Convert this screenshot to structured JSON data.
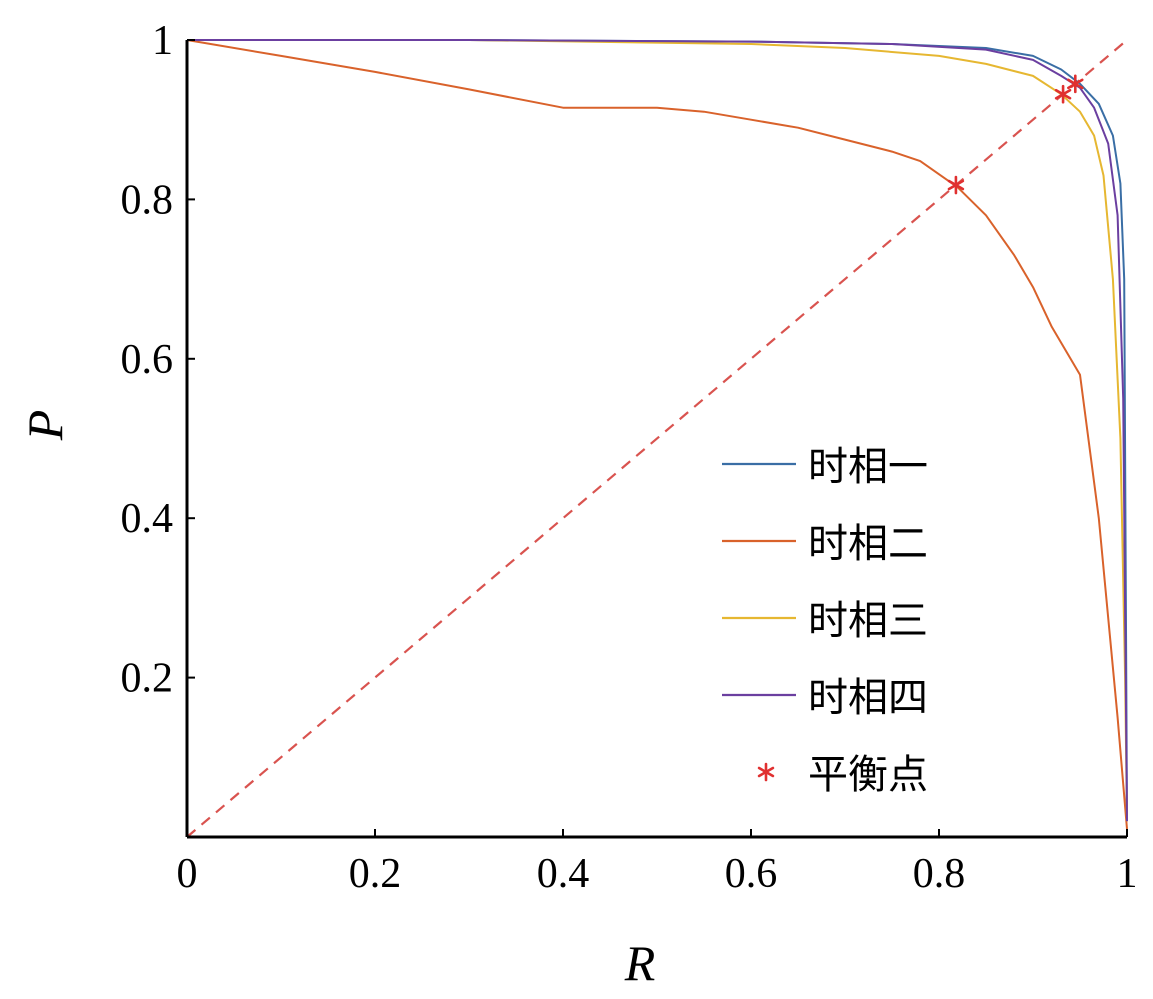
{
  "chart_data": {
    "type": "line",
    "xlabel": "R",
    "ylabel": "P",
    "xlim": [
      0,
      1
    ],
    "ylim": [
      0,
      1
    ],
    "x_ticks": [
      "0",
      "0.2",
      "0.4",
      "0.6",
      "0.8",
      "1"
    ],
    "y_ticks": [
      "0.2",
      "0.4",
      "0.6",
      "0.8",
      "1"
    ],
    "grid": false,
    "legend_position": "bottom-right",
    "series": [
      {
        "name": "时相一",
        "color": "#3a6ea5",
        "x": [
          0,
          0.3,
          0.6,
          0.75,
          0.85,
          0.9,
          0.93,
          0.95,
          0.97,
          0.985,
          0.993,
          0.997,
          1.0
        ],
        "y": [
          1.0,
          1.0,
          0.998,
          0.995,
          0.99,
          0.98,
          0.963,
          0.945,
          0.92,
          0.88,
          0.82,
          0.7,
          0.02
        ]
      },
      {
        "name": "时相二",
        "color": "#d9622b",
        "x": [
          0,
          0.1,
          0.2,
          0.3,
          0.4,
          0.5,
          0.55,
          0.6,
          0.65,
          0.7,
          0.75,
          0.78,
          0.82,
          0.85,
          0.88,
          0.9,
          0.92,
          0.95,
          0.97,
          0.99,
          1.0
        ],
        "y": [
          1.0,
          0.98,
          0.96,
          0.938,
          0.915,
          0.915,
          0.91,
          0.9,
          0.89,
          0.875,
          0.86,
          0.848,
          0.815,
          0.78,
          0.73,
          0.69,
          0.64,
          0.58,
          0.4,
          0.15,
          0.01
        ]
      },
      {
        "name": "时相三",
        "color": "#e6b731",
        "x": [
          0,
          0.3,
          0.6,
          0.7,
          0.8,
          0.85,
          0.9,
          0.93,
          0.95,
          0.965,
          0.975,
          0.985,
          0.993,
          0.998,
          1.0
        ],
        "y": [
          1.0,
          1.0,
          0.995,
          0.99,
          0.98,
          0.97,
          0.955,
          0.932,
          0.91,
          0.88,
          0.83,
          0.7,
          0.5,
          0.2,
          0.02
        ]
      },
      {
        "name": "时相四",
        "color": "#6b3fa0",
        "x": [
          0,
          0.3,
          0.6,
          0.75,
          0.85,
          0.9,
          0.93,
          0.95,
          0.965,
          0.98,
          0.99,
          0.996,
          1.0
        ],
        "y": [
          1.0,
          1.0,
          0.998,
          0.995,
          0.988,
          0.975,
          0.955,
          0.94,
          0.915,
          0.87,
          0.78,
          0.55,
          0.02
        ]
      }
    ],
    "balance_points": {
      "name": "平衡点",
      "color": "#e03030",
      "points": [
        [
          0.818,
          0.818
        ],
        [
          0.932,
          0.932
        ],
        [
          0.945,
          0.945
        ]
      ]
    },
    "reference_line": {
      "style": "dashed",
      "color": "#d9534f",
      "from": [
        0,
        0
      ],
      "to": [
        1,
        1
      ]
    }
  }
}
